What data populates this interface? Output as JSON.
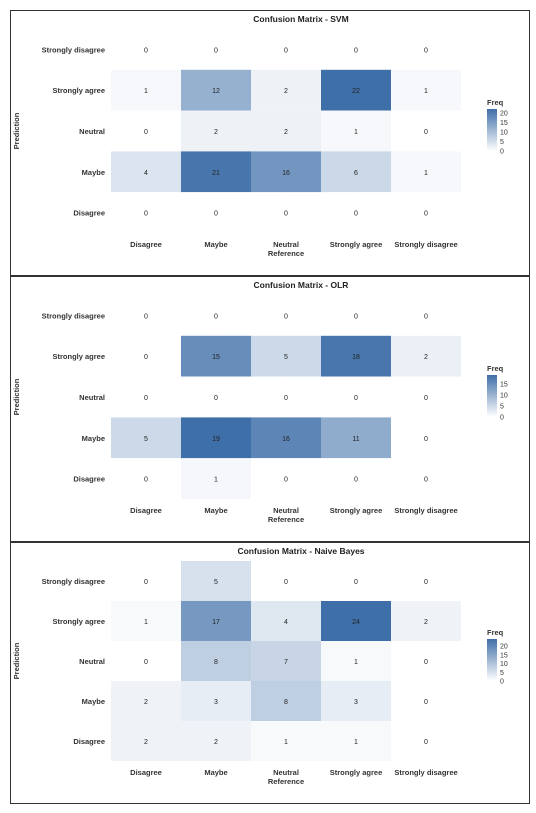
{
  "chart_data": [
    {
      "type": "heatmap",
      "title": "Confusion Matrix - SVM",
      "xlabel": "Reference",
      "ylabel": "Prediction",
      "x_categories": [
        "Disagree",
        "Maybe",
        "Neutral",
        "Strongly agree",
        "Strongly disagree"
      ],
      "y_categories": [
        "Strongly disagree",
        "Strongly agree",
        "Neutral",
        "Maybe",
        "Disagree"
      ],
      "values": [
        [
          0,
          0,
          0,
          0,
          0
        ],
        [
          1,
          12,
          2,
          22,
          1
        ],
        [
          0,
          2,
          2,
          1,
          0
        ],
        [
          4,
          21,
          16,
          6,
          1
        ],
        [
          0,
          0,
          0,
          0,
          0
        ]
      ],
      "legend": {
        "title": "Freq",
        "ticks": [
          20,
          15,
          10,
          5,
          0
        ],
        "max": 22,
        "placement": "right"
      },
      "colors": {
        "low": "#ffffff",
        "high": "#3f6fa8"
      }
    },
    {
      "type": "heatmap",
      "title": "Confusion Matrix - OLR",
      "xlabel": "Reference",
      "ylabel": "Prediction",
      "x_categories": [
        "Disagree",
        "Maybe",
        "Neutral",
        "Strongly agree",
        "Strongly disagree"
      ],
      "y_categories": [
        "Strongly disagree",
        "Strongly agree",
        "Neutral",
        "Maybe",
        "Disagree"
      ],
      "values": [
        [
          0,
          0,
          0,
          0,
          0
        ],
        [
          0,
          15,
          5,
          18,
          2
        ],
        [
          0,
          0,
          0,
          0,
          0
        ],
        [
          5,
          19,
          16,
          11,
          0
        ],
        [
          0,
          1,
          0,
          0,
          0
        ]
      ],
      "legend": {
        "title": "Freq",
        "ticks": [
          15,
          10,
          5,
          0
        ],
        "max": 19,
        "placement": "right"
      },
      "colors": {
        "low": "#ffffff",
        "high": "#3f6fa8"
      }
    },
    {
      "type": "heatmap",
      "title": "Confusion Matrix - Naive Bayes",
      "xlabel": "Reference",
      "ylabel": "Prediction",
      "x_categories": [
        "Disagree",
        "Maybe",
        "Neutral",
        "Strongly agree",
        "Strongly disagree"
      ],
      "y_categories": [
        "Strongly disagree",
        "Strongly agree",
        "Neutral",
        "Maybe",
        "Disagree"
      ],
      "values": [
        [
          0,
          5,
          0,
          0,
          0
        ],
        [
          1,
          17,
          4,
          24,
          2
        ],
        [
          0,
          8,
          7,
          1,
          0
        ],
        [
          2,
          3,
          8,
          3,
          0
        ],
        [
          2,
          2,
          1,
          1,
          0
        ]
      ],
      "legend": {
        "title": "Freq",
        "ticks": [
          20,
          15,
          10,
          5,
          0
        ],
        "max": 24,
        "placement": "right"
      },
      "colors": {
        "low": "#ffffff",
        "high": "#3f6fa8"
      }
    }
  ]
}
